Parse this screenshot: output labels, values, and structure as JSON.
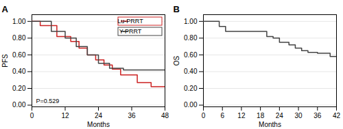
{
  "chart_data": [
    {
      "type": "line",
      "title": "A",
      "xlabel": "Months",
      "ylabel": "PFS",
      "xlim": [
        0,
        48
      ],
      "ylim": [
        -0.02,
        1.08
      ],
      "xticks": [
        0,
        12,
        24,
        36,
        48
      ],
      "yticks": [
        {
          "value": 0,
          "label": "0.00"
        },
        {
          "value": 0.2,
          "label": "0.20"
        },
        {
          "value": 0.4,
          "label": "0.40"
        },
        {
          "value": 0.6,
          "label": "0.60"
        },
        {
          "value": 0.8,
          "label": "0.80"
        },
        {
          "value": 1.0,
          "label": "1.00"
        }
      ],
      "grid": true,
      "legend": "upper right",
      "line_style": "step",
      "annotations": [
        "P=0.529"
      ],
      "series": [
        {
          "name": "Lu-PRRT",
          "color": "#cc2222",
          "x": [
            0,
            3,
            3,
            9,
            9,
            14,
            14,
            17,
            17,
            20,
            20,
            23,
            23,
            26,
            26,
            29,
            29,
            32,
            32,
            38,
            38,
            43,
            43,
            48
          ],
          "values": [
            1.0,
            1.0,
            0.95,
            0.95,
            0.82,
            0.82,
            0.76,
            0.76,
            0.68,
            0.68,
            0.6,
            0.6,
            0.54,
            0.54,
            0.48,
            0.48,
            0.43,
            0.43,
            0.36,
            0.36,
            0.27,
            0.27,
            0.22,
            0.22
          ]
        },
        {
          "name": "Y-PRRT",
          "color": "#444444",
          "x": [
            0,
            7,
            7,
            12,
            12,
            16,
            16,
            20,
            20,
            24,
            24,
            28,
            28,
            33,
            33,
            48
          ],
          "values": [
            1.0,
            1.0,
            0.88,
            0.88,
            0.8,
            0.8,
            0.7,
            0.7,
            0.6,
            0.6,
            0.5,
            0.5,
            0.44,
            0.44,
            0.42,
            0.42
          ]
        }
      ]
    },
    {
      "type": "line",
      "title": "B",
      "xlabel": "Months",
      "ylabel": "OS",
      "xlim": [
        0,
        42
      ],
      "ylim": [
        -0.02,
        1.08
      ],
      "xticks": [
        0,
        6,
        12,
        18,
        24,
        30,
        36,
        42
      ],
      "yticks": [
        {
          "value": 0,
          "label": "0.00"
        },
        {
          "value": 0.2,
          "label": "0.20"
        },
        {
          "value": 0.4,
          "label": "0.40"
        },
        {
          "value": 0.6,
          "label": "0.60"
        },
        {
          "value": 0.8,
          "label": "0.80"
        },
        {
          "value": 1.0,
          "label": "1.00"
        }
      ],
      "grid": true,
      "line_style": "step",
      "series": [
        {
          "color": "#444444",
          "x": [
            0,
            5,
            5,
            7,
            7,
            20,
            20,
            22,
            22,
            24,
            24,
            27,
            27,
            29,
            29,
            31,
            31,
            33,
            33,
            36,
            36,
            40,
            40,
            42
          ],
          "values": [
            1.0,
            1.0,
            0.94,
            0.94,
            0.88,
            0.88,
            0.82,
            0.82,
            0.8,
            0.8,
            0.75,
            0.75,
            0.72,
            0.72,
            0.68,
            0.68,
            0.65,
            0.65,
            0.63,
            0.63,
            0.62,
            0.62,
            0.58,
            0.58
          ]
        }
      ]
    }
  ]
}
